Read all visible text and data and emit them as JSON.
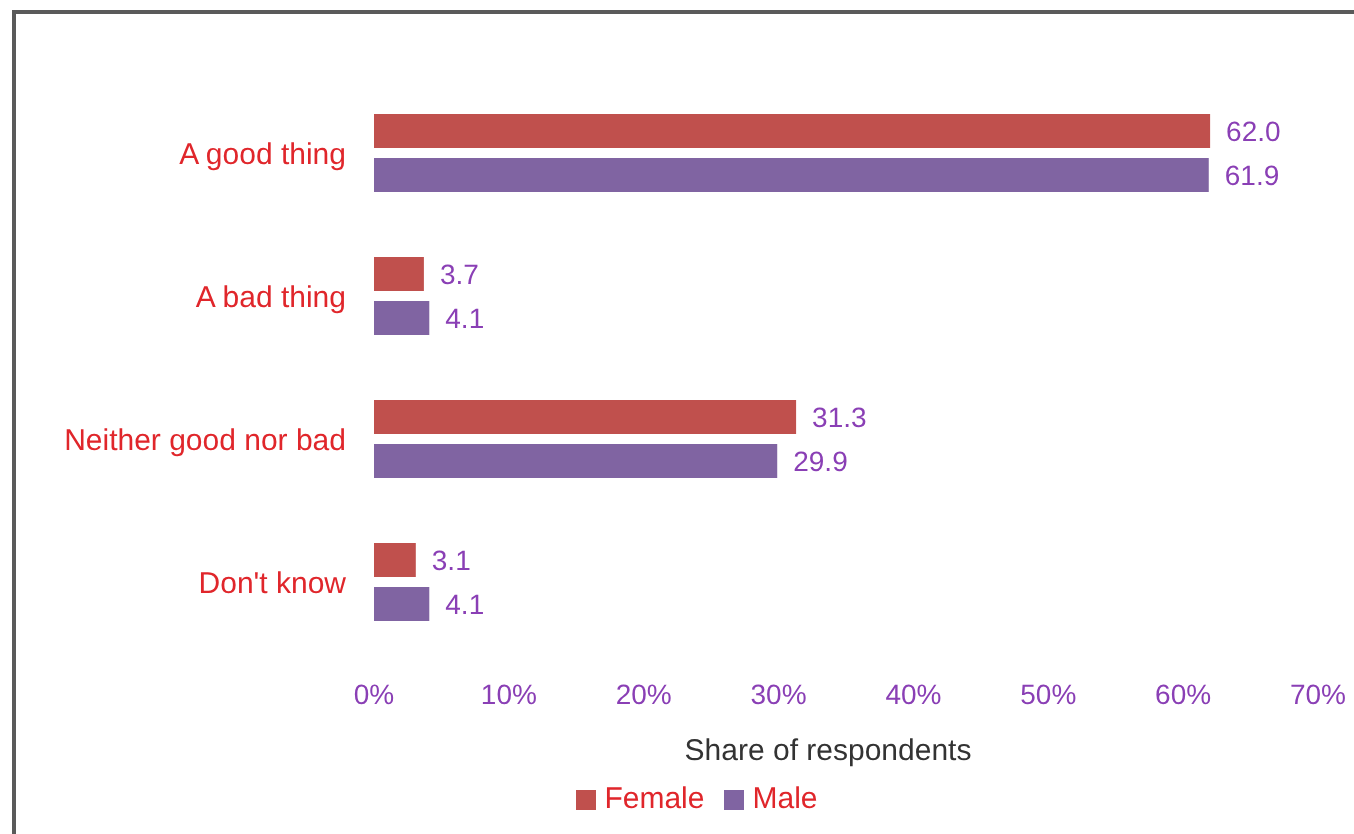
{
  "chart_data": {
    "type": "bar",
    "orientation": "horizontal",
    "categories": [
      "A good thing",
      "A bad thing",
      "Neither good nor bad",
      "Don't know"
    ],
    "series": [
      {
        "name": "Female",
        "color": "#c0504d",
        "values": [
          62.0,
          3.7,
          31.3,
          3.1
        ],
        "value_labels": [
          "62.0",
          "3.7",
          "31.3",
          "3.1"
        ]
      },
      {
        "name": "Male",
        "color": "#8064a2",
        "values": [
          61.9,
          4.1,
          29.9,
          4.1
        ],
        "value_labels": [
          "61.9",
          "4.1",
          "29.9",
          "4.1"
        ]
      }
    ],
    "xlabel": "Share of respondents",
    "xlim": [
      0,
      70
    ],
    "xticks": [
      {
        "value": 0,
        "label": "0%"
      },
      {
        "value": 10,
        "label": "10%"
      },
      {
        "value": 20,
        "label": "20%"
      },
      {
        "value": 30,
        "label": "30%"
      },
      {
        "value": 40,
        "label": "40%"
      },
      {
        "value": 50,
        "label": "50%"
      },
      {
        "value": 60,
        "label": "60%"
      },
      {
        "value": 70,
        "label": "70%"
      }
    ],
    "legend": "bottom"
  }
}
